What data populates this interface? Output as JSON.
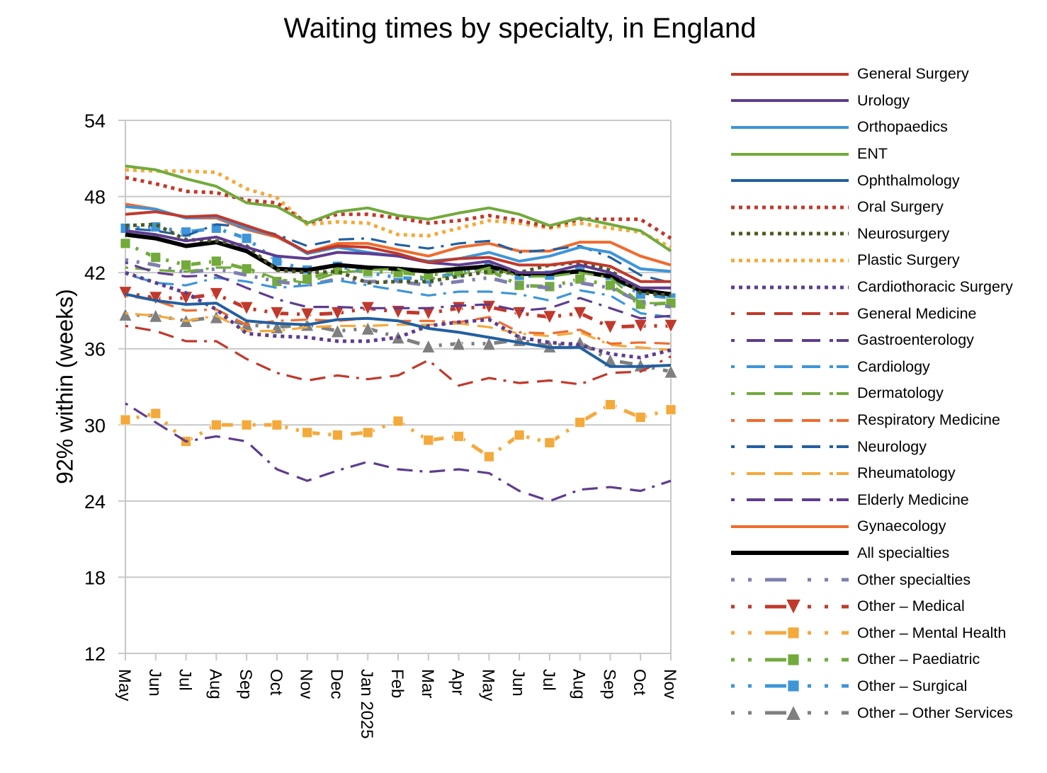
{
  "chart_data": {
    "type": "line",
    "title": "Waiting times by specialty, in England",
    "xlabel": "",
    "ylabel": "92% within (weeks)",
    "ylim": [
      12,
      54
    ],
    "yticks": [
      12,
      18,
      24,
      30,
      36,
      42,
      48,
      54
    ],
    "grid": "horizontal",
    "legend_position": "right",
    "categories": [
      "May",
      "Jun",
      "Jul",
      "Aug",
      "Sep",
      "Oct",
      "Nov",
      "Dec",
      "Jan 2025",
      "Feb",
      "Mar",
      "Apr",
      "May",
      "Jun",
      "Jul",
      "Aug",
      "Sep",
      "Oct",
      "Nov"
    ],
    "series": [
      {
        "name": "General Surgery",
        "color": "#C0392B",
        "style": "solid",
        "marker": "none",
        "values": [
          46.6,
          46.8,
          46.4,
          46.5,
          45.7,
          44.9,
          43.6,
          44.1,
          44.0,
          43.5,
          42.8,
          43.1,
          43.2,
          42.6,
          42.6,
          42.9,
          42.5,
          41.3,
          41.3
        ]
      },
      {
        "name": "Urology",
        "color": "#5E3C8F",
        "style": "solid",
        "marker": "none",
        "values": [
          45.3,
          45.0,
          44.5,
          44.8,
          44.0,
          43.3,
          43.1,
          43.6,
          43.5,
          43.3,
          42.8,
          42.6,
          42.9,
          42.0,
          42.0,
          42.6,
          42.0,
          40.8,
          40.8
        ]
      },
      {
        "name": "Orthopaedics",
        "color": "#3E95D8",
        "style": "solid",
        "marker": "none",
        "values": [
          47.2,
          47.0,
          46.3,
          46.4,
          45.5,
          44.9,
          43.5,
          44.0,
          43.6,
          43.3,
          42.9,
          43.1,
          43.6,
          42.9,
          43.3,
          44.0,
          43.6,
          42.3,
          42.1
        ]
      },
      {
        "name": "ENT",
        "color": "#72AA3C",
        "style": "solid",
        "marker": "none",
        "values": [
          50.4,
          50.1,
          49.4,
          48.8,
          47.5,
          47.2,
          45.9,
          46.8,
          47.1,
          46.5,
          46.2,
          46.7,
          47.1,
          46.6,
          45.7,
          46.3,
          45.8,
          45.3,
          43.7
        ]
      },
      {
        "name": "Ophthalmology",
        "color": "#225FA0",
        "style": "solid",
        "marker": "none",
        "values": [
          40.3,
          39.8,
          39.5,
          39.6,
          38.2,
          38.0,
          37.9,
          38.3,
          38.4,
          38.2,
          37.6,
          37.3,
          36.9,
          36.5,
          36.1,
          36.1,
          34.6,
          34.6,
          34.7
        ]
      },
      {
        "name": "Oral Surgery",
        "color": "#C0392B",
        "style": "dotted",
        "marker": "none",
        "values": [
          49.5,
          49.0,
          48.4,
          48.3,
          47.7,
          47.5,
          45.9,
          46.6,
          46.6,
          46.3,
          45.9,
          46.1,
          46.5,
          46.1,
          45.6,
          46.2,
          46.2,
          46.2,
          44.7
        ]
      },
      {
        "name": "Neurosurgery",
        "color": "#4C5A22",
        "style": "dotted",
        "marker": "none",
        "values": [
          45.7,
          45.8,
          44.6,
          44.5,
          44.1,
          42.2,
          42.0,
          42.1,
          41.2,
          41.3,
          41.3,
          41.7,
          42.1,
          42.0,
          42.6,
          42.8,
          42.2,
          40.4,
          40.2
        ]
      },
      {
        "name": "Plastic Surgery",
        "color": "#F4A93B",
        "style": "dotted",
        "marker": "none",
        "values": [
          50.1,
          50.0,
          50.0,
          49.9,
          48.6,
          47.9,
          45.8,
          46.0,
          45.9,
          45.0,
          44.9,
          45.5,
          46.1,
          45.9,
          45.5,
          45.9,
          45.5,
          45.2,
          44.0
        ]
      },
      {
        "name": "Cardiothoracic Surgery",
        "color": "#5E3C8F",
        "style": "dotted",
        "marker": "none",
        "values": [
          42.0,
          41.2,
          40.4,
          39.1,
          37.2,
          37.0,
          36.9,
          36.6,
          36.6,
          36.9,
          37.8,
          38.1,
          38.3,
          36.9,
          36.5,
          36.3,
          35.6,
          35.3,
          35.9
        ]
      },
      {
        "name": "General Medicine",
        "color": "#C0392B",
        "style": "dash-dot",
        "marker": "none",
        "values": [
          37.8,
          37.4,
          36.6,
          36.6,
          35.2,
          34.1,
          33.5,
          33.9,
          33.6,
          33.9,
          35.1,
          33.1,
          33.7,
          33.3,
          33.5,
          33.2,
          34.1,
          34.2,
          35.4
        ]
      },
      {
        "name": "Gastroenterology",
        "color": "#5E3C8F",
        "style": "dash-dot",
        "marker": "none",
        "values": [
          42.8,
          42.0,
          41.7,
          41.8,
          40.8,
          39.9,
          39.3,
          39.3,
          39.2,
          39.2,
          39.2,
          39.4,
          39.5,
          39.0,
          39.2,
          40.0,
          39.2,
          38.4,
          38.6
        ]
      },
      {
        "name": "Cardiology",
        "color": "#3E95D8",
        "style": "dash-dot",
        "marker": "none",
        "values": [
          41.9,
          41.2,
          41.0,
          41.6,
          41.3,
          40.8,
          41.0,
          41.4,
          41.0,
          40.6,
          40.2,
          40.5,
          40.5,
          40.3,
          39.8,
          40.6,
          40.2,
          38.8,
          38.5
        ]
      },
      {
        "name": "Dermatology",
        "color": "#72AA3C",
        "style": "dash-dot",
        "marker": "none",
        "values": [
          42.4,
          42.2,
          42.1,
          42.4,
          42.4,
          41.5,
          41.2,
          42.0,
          42.2,
          42.3,
          41.5,
          41.8,
          42.4,
          41.7,
          41.7,
          42.0,
          41.6,
          39.6,
          39.6
        ]
      },
      {
        "name": "Respiratory Medicine",
        "color": "#F06B2D",
        "style": "dash-dot",
        "marker": "none",
        "values": [
          40.2,
          39.8,
          39.0,
          39.1,
          37.9,
          38.2,
          38.3,
          38.2,
          38.4,
          38.2,
          38.2,
          38.1,
          38.5,
          37.3,
          37.2,
          37.5,
          36.4,
          36.5,
          36.4
        ]
      },
      {
        "name": "Neurology",
        "color": "#225FA0",
        "style": "dash-dot",
        "marker": "none",
        "values": [
          45.5,
          45.3,
          44.9,
          45.8,
          45.6,
          45.0,
          44.1,
          44.6,
          44.7,
          44.2,
          43.9,
          44.3,
          44.5,
          43.6,
          43.8,
          44.1,
          43.2,
          41.8,
          41.2
        ]
      },
      {
        "name": "Rheumatology",
        "color": "#F4A93B",
        "style": "dash-dot",
        "marker": "none",
        "values": [
          38.8,
          38.6,
          38.2,
          38.6,
          37.4,
          37.4,
          37.7,
          37.8,
          37.8,
          37.9,
          37.9,
          38.0,
          37.7,
          37.2,
          37.0,
          37.3,
          36.3,
          36.1,
          35.9
        ]
      },
      {
        "name": "Elderly Medicine",
        "color": "#5E3C8F",
        "style": "dash-dot",
        "marker": "none",
        "values": [
          31.7,
          30.2,
          28.7,
          29.1,
          28.7,
          26.5,
          25.6,
          26.4,
          27.1,
          26.5,
          26.3,
          26.5,
          26.2,
          24.8,
          24.0,
          24.9,
          25.1,
          24.8,
          25.6
        ]
      },
      {
        "name": "Gynaecology",
        "color": "#F06B2D",
        "style": "solid",
        "marker": "none",
        "values": [
          47.4,
          47.0,
          46.3,
          46.3,
          45.4,
          44.8,
          43.6,
          44.3,
          44.3,
          43.8,
          43.3,
          44.0,
          44.3,
          43.7,
          43.7,
          44.4,
          44.4,
          43.3,
          42.6
        ]
      },
      {
        "name": "All specialties",
        "color": "#000000",
        "style": "solid-thick",
        "marker": "none",
        "values": [
          45.0,
          44.7,
          44.1,
          44.4,
          43.7,
          42.3,
          42.2,
          42.6,
          42.4,
          42.3,
          42.1,
          42.3,
          42.5,
          41.9,
          41.9,
          42.1,
          41.7,
          40.6,
          40.3
        ]
      },
      {
        "name": "Other specialties",
        "color": "#7E7FB0",
        "style": "dash-dot-dot",
        "marker": "none",
        "values": [
          43.0,
          42.6,
          42.0,
          42.3,
          41.8,
          41.3,
          41.0,
          41.5,
          41.3,
          41.3,
          41.0,
          41.3,
          41.6,
          41.0,
          40.8,
          41.2,
          40.8,
          39.7,
          39.3
        ]
      },
      {
        "name": "Other – Medical",
        "color": "#C0392B",
        "style": "dash-dot-dot",
        "marker": "triangle-down",
        "values": [
          40.4,
          40.0,
          40.0,
          40.3,
          39.2,
          38.8,
          38.7,
          38.8,
          39.2,
          38.9,
          38.8,
          39.2,
          39.3,
          38.8,
          38.5,
          38.8,
          37.7,
          37.8,
          37.8
        ]
      },
      {
        "name": "Other – Mental Health",
        "color": "#F4A93B",
        "style": "dash-dot-dot",
        "marker": "square",
        "values": [
          30.4,
          30.9,
          28.7,
          30.0,
          30.0,
          30.0,
          29.4,
          29.2,
          29.4,
          30.3,
          28.8,
          29.1,
          27.5,
          29.2,
          28.6,
          30.2,
          31.6,
          30.6,
          31.2
        ]
      },
      {
        "name": "Other – Paediatric",
        "color": "#72AA3C",
        "style": "dash-dot-dot",
        "marker": "square",
        "values": [
          44.3,
          43.2,
          42.6,
          42.9,
          42.3,
          41.3,
          41.5,
          42.2,
          42.1,
          42.0,
          41.8,
          42.1,
          42.2,
          41.0,
          40.9,
          41.5,
          41.0,
          39.5,
          39.6
        ]
      },
      {
        "name": "Other – Surgical",
        "color": "#3E95D8",
        "style": "dash-dot-dot",
        "marker": "square",
        "values": [
          45.5,
          45.6,
          45.2,
          45.5,
          44.7,
          42.9,
          42.2,
          42.5,
          42.0,
          41.6,
          41.5,
          42.0,
          42.4,
          41.7,
          41.8,
          42.2,
          41.7,
          40.3,
          40.0
        ]
      },
      {
        "name": "Other – Other Services",
        "color": "#7F7F7F",
        "style": "dash-dot-dot",
        "marker": "triangle-up",
        "values": [
          38.7,
          38.6,
          38.2,
          38.5,
          37.9,
          37.7,
          37.9,
          37.4,
          37.6,
          36.9,
          36.2,
          36.4,
          36.4,
          36.7,
          36.2,
          36.5,
          35.1,
          34.7,
          34.2
        ]
      }
    ]
  }
}
